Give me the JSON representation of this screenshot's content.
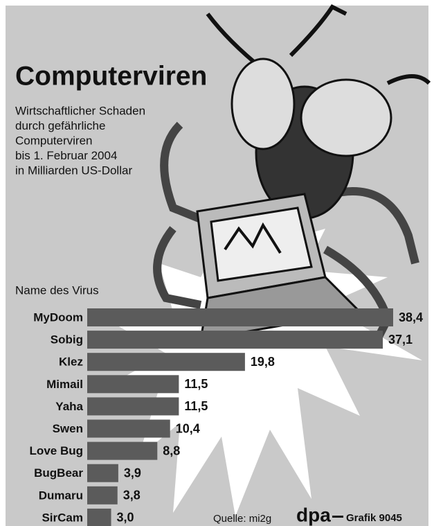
{
  "chart_data": {
    "type": "bar",
    "orientation": "horizontal",
    "title": "Computerviren",
    "subtitle": [
      "Wirtschaftlicher Schaden",
      "durch gefährliche",
      "Computerviren",
      "bis 1. Februar 2004",
      "in Milliarden US-Dollar"
    ],
    "y_label": "Name des Virus",
    "categories": [
      "MyDoom",
      "Sobig",
      "Klez",
      "Mimail",
      "Yaha",
      "Swen",
      "Love Bug",
      "BugBear",
      "Dumaru",
      "SirCam"
    ],
    "values": [
      38.4,
      37.1,
      19.8,
      11.5,
      11.5,
      10.4,
      8.8,
      3.9,
      3.8,
      3.0
    ],
    "value_labels": [
      "38,4",
      "37,1",
      "19,8",
      "11,5",
      "11,5",
      "10,4",
      "8,8",
      "3,9",
      "3,8",
      "3,0"
    ],
    "color": "#5b5b5b",
    "source": "Quelle: mi2g",
    "agency": "dpa",
    "credit": "Grafik 9045"
  }
}
